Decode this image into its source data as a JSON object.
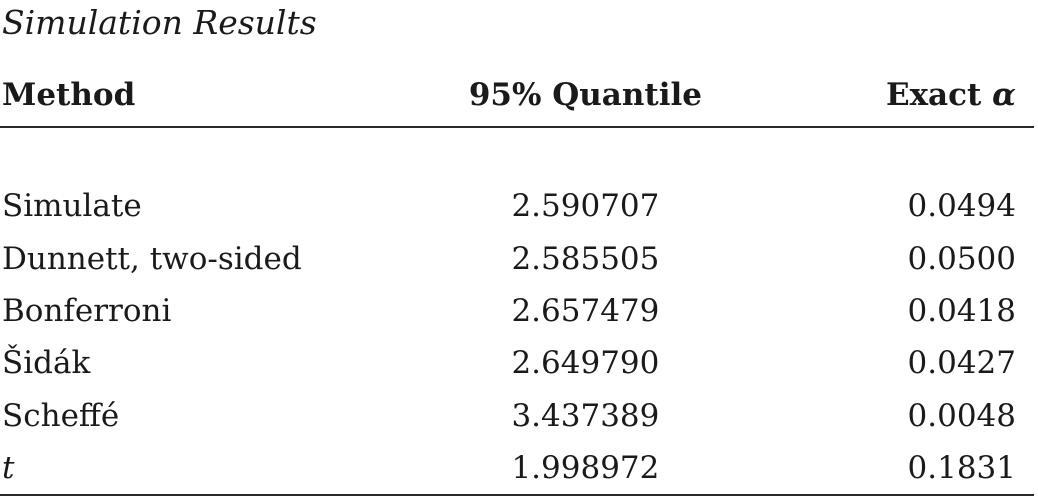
{
  "caption": "Simulation Results",
  "columns": {
    "method": "Method",
    "quantile": "95% Quantile",
    "exact_prefix": "Exact",
    "exact_symbol": "α"
  },
  "rows": [
    {
      "method": "Simulate",
      "quantile": "2.590707",
      "alpha": "0.0494"
    },
    {
      "method": "Dunnett, two-sided",
      "quantile": "2.585505",
      "alpha": "0.0500"
    },
    {
      "method": "Bonferroni",
      "quantile": "2.657479",
      "alpha": "0.0418"
    },
    {
      "method": "Šidák",
      "quantile": "2.649790",
      "alpha": "0.0427"
    },
    {
      "method": "Scheffé",
      "quantile": "3.437389",
      "alpha": "0.0048"
    },
    {
      "method": "t",
      "quantile": "1.998972",
      "alpha": "0.1831"
    }
  ]
}
